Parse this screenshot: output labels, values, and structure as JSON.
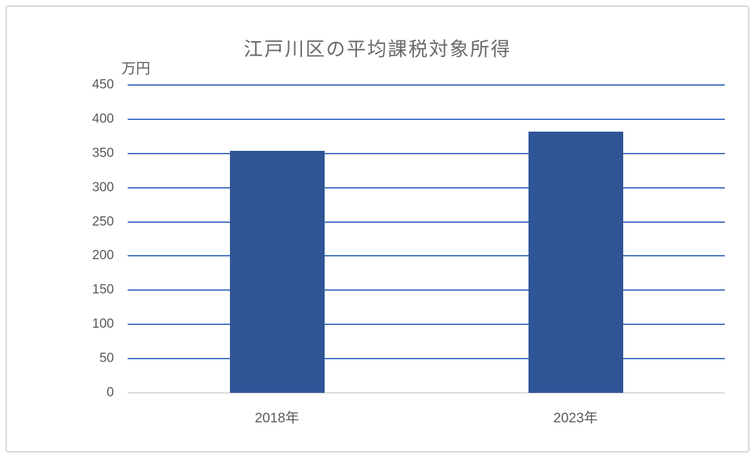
{
  "window": {
    "background_color": "#ffffff",
    "frame_border_color": "#d6d6d6"
  },
  "chart_data": {
    "type": "bar",
    "title": "江戸川区の平均課税対象所得",
    "categories": [
      "2018年",
      "2023年"
    ],
    "values": [
      354,
      382
    ],
    "xlabel": "",
    "ylabel": "万円",
    "ylim": [
      0,
      450
    ],
    "ytick_step": 50,
    "yticks": [
      0,
      50,
      100,
      150,
      200,
      250,
      300,
      350,
      400,
      450
    ],
    "grid": "horizontal",
    "legend": "none",
    "bar_color": "#2F5597",
    "gridline_color": "#4472C4",
    "baseline_color": "#D9D9D9",
    "text_color": "#595959",
    "title_color": "#6A6A6A"
  }
}
